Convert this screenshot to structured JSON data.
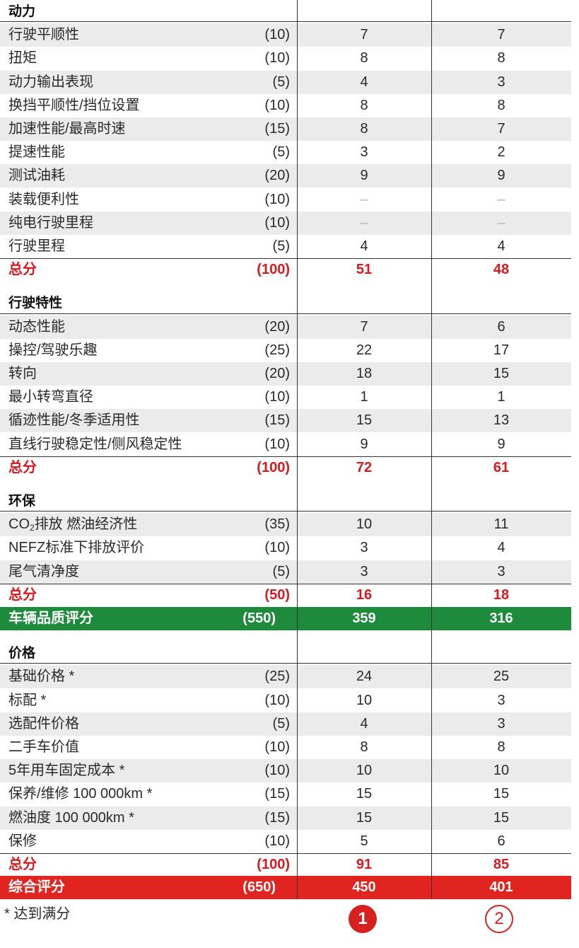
{
  "sections": [
    {
      "title": "动力",
      "items": [
        {
          "label": "行驶平顺性",
          "max": "(10)",
          "a": "7",
          "b": "7"
        },
        {
          "label": "扭矩",
          "max": "(10)",
          "a": "8",
          "b": "8"
        },
        {
          "label": "动力输出表现",
          "max": "(5)",
          "a": "4",
          "b": "3"
        },
        {
          "label": "换挡平顺性/挡位设置",
          "max": "(10)",
          "a": "8",
          "b": "8"
        },
        {
          "label": "加速性能/最高时速",
          "max": "(15)",
          "a": "8",
          "b": "7"
        },
        {
          "label": "提速性能",
          "max": "(5)",
          "a": "3",
          "b": "2"
        },
        {
          "label": "测试油耗",
          "max": "(20)",
          "a": "9",
          "b": "9"
        },
        {
          "label": "装载便利性",
          "max": "(10)",
          "a": "–",
          "b": "–"
        },
        {
          "label": "纯电行驶里程",
          "max": "(10)",
          "a": "–",
          "b": "–"
        },
        {
          "label": "行驶里程",
          "max": "(5)",
          "a": "4",
          "b": "4"
        }
      ],
      "total": {
        "label": "总分",
        "max": "(100)",
        "a": "51",
        "b": "48"
      }
    },
    {
      "title": "行驶特性",
      "items": [
        {
          "label": "动态性能",
          "max": "(20)",
          "a": "7",
          "b": "6"
        },
        {
          "label": "操控/驾驶乐趣",
          "max": "(25)",
          "a": "22",
          "b": "17"
        },
        {
          "label": "转向",
          "max": "(20)",
          "a": "18",
          "b": "15"
        },
        {
          "label": "最小转弯直径",
          "max": "(10)",
          "a": "1",
          "b": "1"
        },
        {
          "label": "循迹性能/冬季适用性",
          "max": "(15)",
          "a": "15",
          "b": "13"
        },
        {
          "label": "直线行驶稳定性/侧风稳定性",
          "max": "(10)",
          "a": "9",
          "b": "9"
        }
      ],
      "total": {
        "label": "总分",
        "max": "(100)",
        "a": "72",
        "b": "61"
      }
    },
    {
      "title": "环保",
      "items": [
        {
          "label_pre": "CO",
          "label_sub": "2",
          "label_post": "排放 燃油经济性",
          "max": "(35)",
          "a": "10",
          "b": "11"
        },
        {
          "label": "NEFZ标准下排放评价",
          "max": "(10)",
          "a": "3",
          "b": "4"
        },
        {
          "label": "尾气清净度",
          "max": "(5)",
          "a": "3",
          "b": "3"
        }
      ],
      "total": {
        "label": "总分",
        "max": "(50)",
        "a": "16",
        "b": "18"
      }
    }
  ],
  "quality": {
    "label": "车辆品质评分",
    "max": "(550)",
    "a": "359",
    "b": "316"
  },
  "price_section": {
    "title": "价格",
    "items": [
      {
        "label": "基础价格 *",
        "max": "(25)",
        "a": "24",
        "b": "25"
      },
      {
        "label": "标配 *",
        "max": "(10)",
        "a": "10",
        "b": "3"
      },
      {
        "label": "选配件价格",
        "max": "(5)",
        "a": "4",
        "b": "3"
      },
      {
        "label": "二手车价值",
        "max": "(10)",
        "a": "8",
        "b": "8"
      },
      {
        "label": "5年用车固定成本 *",
        "max": "(10)",
        "a": "10",
        "b": "10"
      },
      {
        "label": "保养/维修 100 000km *",
        "max": "(15)",
        "a": "15",
        "b": "15"
      },
      {
        "label": "燃油度 100 000km *",
        "max": "(15)",
        "a": "15",
        "b": "15"
      },
      {
        "label": "保修",
        "max": "(10)",
        "a": "5",
        "b": "6"
      }
    ],
    "total": {
      "label": "总分",
      "max": "(100)",
      "a": "91",
      "b": "85"
    }
  },
  "overall": {
    "label": "综合评分",
    "max": "(650)",
    "a": "450",
    "b": "401"
  },
  "footnote": "* 达到满分",
  "ranks": {
    "a": "1",
    "b": "2"
  },
  "colors": {
    "total_red": "#d71a1f",
    "quality_green": "#1e8a3c",
    "overall_red": "#e1241f",
    "shade": "#ebebeb"
  }
}
